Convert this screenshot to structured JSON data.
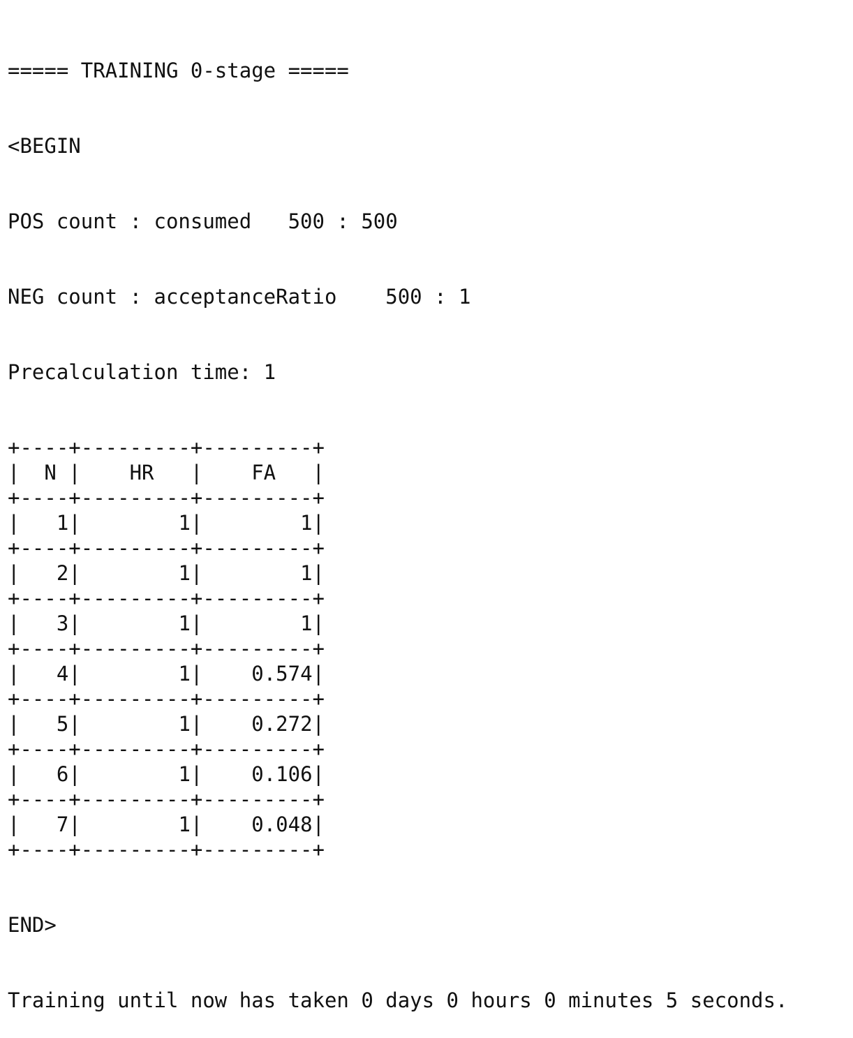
{
  "header": "===== TRAINING 0-stage =====",
  "begin": "<BEGIN",
  "pos_count": "POS count : consumed   500 : 500",
  "neg_count": "NEG count : acceptanceRatio    500 : 1",
  "precalc": "Precalculation time: 1",
  "table": {
    "border": "+----+---------+---------+",
    "header_row": "|  N |    HR   |    FA   |",
    "columns": [
      "N",
      "HR",
      "FA"
    ],
    "rows": [
      {
        "n": "1",
        "hr": "1",
        "fa": "1"
      },
      {
        "n": "2",
        "hr": "1",
        "fa": "1"
      },
      {
        "n": "3",
        "hr": "1",
        "fa": "1"
      },
      {
        "n": "4",
        "hr": "1",
        "fa": "0.574"
      },
      {
        "n": "5",
        "hr": "1",
        "fa": "0.272"
      },
      {
        "n": "6",
        "hr": "1",
        "fa": "0.106"
      },
      {
        "n": "7",
        "hr": "1",
        "fa": "0.048"
      }
    ]
  },
  "end": "END>",
  "footer": "Training until now has taken 0 days 0 hours 0 minutes 5 seconds."
}
